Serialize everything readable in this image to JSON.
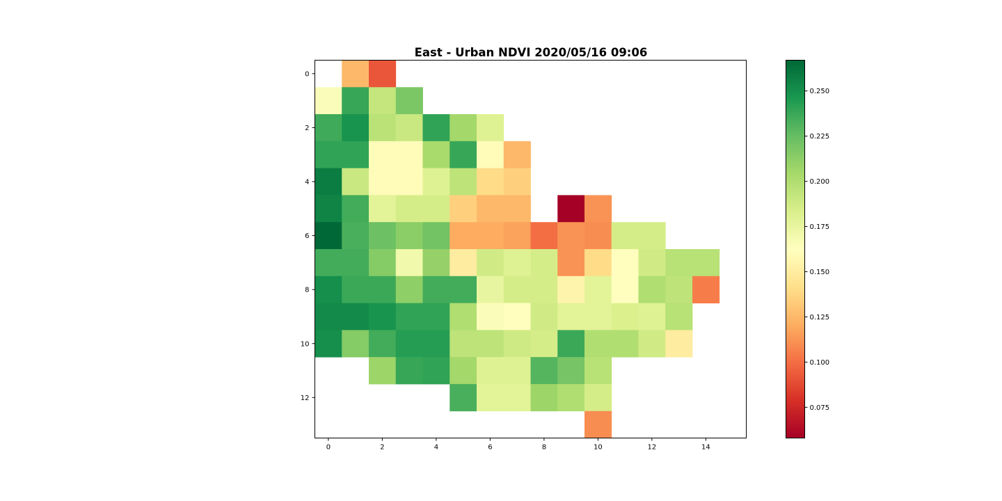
{
  "chart_data": {
    "type": "heatmap",
    "title": "East - Urban NDVI 2020/05/16 09:06",
    "xlabel": "",
    "ylabel": "",
    "x_ticks": [
      0,
      2,
      4,
      6,
      8,
      10,
      12,
      14
    ],
    "y_ticks": [
      0,
      2,
      4,
      6,
      8,
      10,
      12
    ],
    "xlim": [
      -0.5,
      15.5
    ],
    "ylim": [
      13.5,
      -0.5
    ],
    "grid": false,
    "colormap": "RdYlGn",
    "vmin": 0.058,
    "vmax": 0.267,
    "colorbar": {
      "ticks": [
        0.075,
        0.1,
        0.125,
        0.15,
        0.175,
        0.2,
        0.225,
        0.25
      ],
      "tick_labels": [
        "0.075",
        "0.100",
        "0.125",
        "0.150",
        "0.175",
        "0.200",
        "0.225",
        "0.250"
      ]
    },
    "values": [
      [
        null,
        0.125,
        0.092,
        null,
        null,
        null,
        null,
        null,
        null,
        null,
        null,
        null,
        null,
        null,
        null,
        null
      ],
      [
        0.165,
        0.238,
        0.192,
        0.218,
        null,
        null,
        null,
        null,
        null,
        null,
        null,
        null,
        null,
        null,
        null,
        null
      ],
      [
        0.236,
        0.248,
        0.196,
        0.19,
        0.24,
        0.205,
        0.18,
        null,
        null,
        null,
        null,
        null,
        null,
        null,
        null,
        null
      ],
      [
        0.24,
        0.24,
        0.16,
        0.16,
        0.203,
        0.238,
        0.16,
        0.125,
        null,
        null,
        null,
        null,
        null,
        null,
        null,
        null
      ],
      [
        0.258,
        0.19,
        0.16,
        0.16,
        0.18,
        0.195,
        0.14,
        0.135,
        null,
        null,
        null,
        null,
        null,
        null,
        null,
        null
      ],
      [
        0.255,
        0.235,
        0.178,
        0.185,
        0.185,
        0.135,
        0.125,
        0.125,
        null,
        0.058,
        0.112,
        null,
        null,
        null,
        null,
        null
      ],
      [
        0.267,
        0.233,
        0.223,
        0.213,
        0.221,
        0.12,
        0.12,
        0.117,
        0.1,
        0.112,
        0.11,
        0.185,
        0.185,
        null,
        null,
        null
      ],
      [
        0.235,
        0.235,
        0.215,
        0.17,
        0.21,
        0.15,
        0.187,
        0.18,
        0.185,
        0.112,
        0.14,
        0.162,
        0.187,
        0.197,
        0.197,
        null
      ],
      [
        0.25,
        0.237,
        0.237,
        0.212,
        0.235,
        0.235,
        0.175,
        0.185,
        0.185,
        0.155,
        0.178,
        0.162,
        0.2,
        0.195,
        0.105,
        null
      ],
      [
        0.252,
        0.252,
        0.248,
        0.24,
        0.24,
        0.2,
        0.165,
        0.162,
        0.187,
        0.178,
        0.178,
        0.182,
        0.18,
        0.197,
        null,
        null
      ],
      [
        0.25,
        0.215,
        0.235,
        0.243,
        0.243,
        0.195,
        0.195,
        0.188,
        0.185,
        0.237,
        0.2,
        0.2,
        0.187,
        0.15,
        null,
        null
      ],
      [
        null,
        null,
        0.207,
        0.238,
        0.24,
        0.205,
        0.18,
        0.18,
        0.23,
        0.22,
        0.197,
        null,
        null,
        null,
        null,
        null
      ],
      [
        null,
        null,
        null,
        null,
        null,
        0.233,
        0.178,
        0.178,
        0.207,
        0.2,
        0.185,
        null,
        null,
        null,
        null,
        null
      ],
      [
        null,
        null,
        null,
        null,
        null,
        null,
        null,
        null,
        null,
        null,
        0.11,
        null,
        null,
        null,
        null,
        null
      ]
    ]
  }
}
